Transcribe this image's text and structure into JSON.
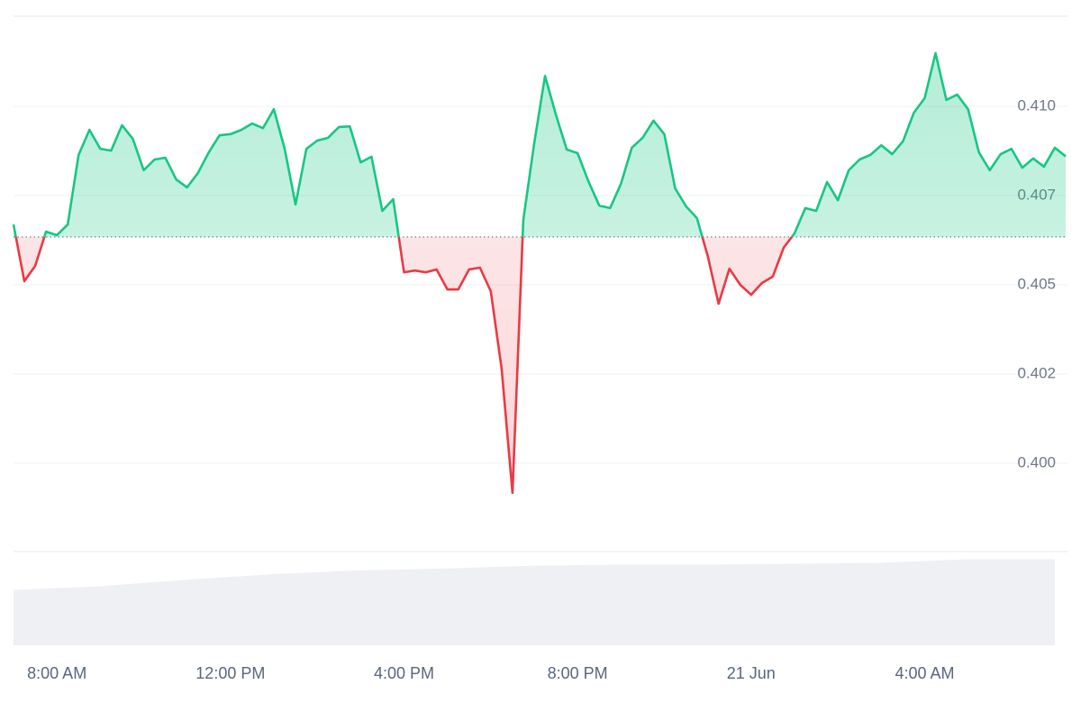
{
  "chart_data": {
    "type": "line",
    "x": [
      7,
      7.25,
      7.5,
      7.75,
      8,
      8.25,
      8.5,
      8.75,
      9,
      9.25,
      9.5,
      9.75,
      10,
      10.25,
      10.5,
      10.75,
      11,
      11.25,
      11.5,
      11.75,
      12,
      12.25,
      12.5,
      12.75,
      13,
      13.25,
      13.5,
      13.75,
      14,
      14.25,
      14.5,
      14.75,
      15,
      15.25,
      15.5,
      15.75,
      16,
      16.25,
      16.5,
      16.75,
      17,
      17.25,
      17.5,
      17.75,
      18,
      18.25,
      18.5,
      18.75,
      19,
      19.25,
      19.5,
      19.75,
      20,
      20.25,
      20.5,
      20.75,
      21,
      21.25,
      21.5,
      21.75,
      22,
      22.25,
      22.5,
      22.75,
      23,
      23.25,
      23.5,
      23.75,
      24,
      24.25,
      24.5,
      24.75,
      25,
      25.25,
      25.5,
      25.75,
      26,
      26.25,
      26.5,
      26.75,
      27,
      27.25,
      27.5,
      27.75,
      28,
      28.25,
      28.5,
      28.75,
      29,
      29.25,
      29.5,
      29.75,
      30,
      30.25,
      30.5,
      30.75,
      31,
      31.25
    ],
    "values": [
      0.40669,
      0.4051,
      0.40553,
      0.40649,
      0.40639,
      0.40669,
      0.40864,
      0.40934,
      0.40881,
      0.40876,
      0.40947,
      0.40909,
      0.40821,
      0.40851,
      0.40856,
      0.40795,
      0.40773,
      0.40813,
      0.40871,
      0.40919,
      0.40922,
      0.40934,
      0.40952,
      0.40939,
      0.40992,
      0.40881,
      0.40725,
      0.40881,
      0.40904,
      0.40912,
      0.40942,
      0.40944,
      0.40843,
      0.40859,
      0.40707,
      0.4074,
      0.40535,
      0.4054,
      0.40535,
      0.40543,
      0.40487,
      0.40487,
      0.40543,
      0.40548,
      0.40482,
      0.40265,
      0.39917,
      0.40682,
      0.40896,
      0.41085,
      0.40977,
      0.40879,
      0.40869,
      0.4079,
      0.40722,
      0.40715,
      0.40783,
      0.40884,
      0.40912,
      0.4096,
      0.40922,
      0.4077,
      0.4072,
      0.40687,
      0.40581,
      0.40447,
      0.40545,
      0.405,
      0.40472,
      0.40505,
      0.40523,
      0.40604,
      0.40644,
      0.40715,
      0.40707,
      0.40788,
      0.40737,
      0.40821,
      0.40851,
      0.40864,
      0.40891,
      0.40866,
      0.40902,
      0.40982,
      0.41023,
      0.41149,
      0.41018,
      0.41033,
      0.40992,
      0.40871,
      0.40821,
      0.40866,
      0.40881,
      0.40828,
      0.40854,
      0.40831,
      0.40884,
      0.4086
    ],
    "baseline": 0.40634,
    "colors": {
      "up": "#16c784",
      "down": "#ea3943",
      "volume": "#eef0f4"
    },
    "xlim": [
      7,
      31.25
    ],
    "xticks": [
      {
        "value": 8,
        "label": "8:00 AM"
      },
      {
        "value": 12,
        "label": "12:00 PM"
      },
      {
        "value": 16,
        "label": "4:00 PM"
      },
      {
        "value": 20,
        "label": "8:00 PM"
      },
      {
        "value": 24,
        "label": "21 Jun"
      },
      {
        "value": 28,
        "label": "4:00 AM"
      }
    ],
    "ylim": [
      0.3975,
      0.4125
    ],
    "yticks": [
      {
        "value": 0.41,
        "label": "0.410"
      },
      {
        "value": 0.4075,
        "label": "0.407"
      },
      {
        "value": 0.405,
        "label": "0.405"
      },
      {
        "value": 0.4025,
        "label": "0.402"
      },
      {
        "value": 0.4,
        "label": "0.400"
      }
    ],
    "grid": true,
    "volume": {
      "x": [
        7,
        9,
        11,
        13,
        15,
        17,
        19,
        21,
        23,
        25,
        27,
        29,
        31
      ],
      "values": [
        59,
        63,
        70,
        76,
        80,
        82,
        85,
        86,
        86,
        87,
        88,
        92,
        92
      ],
      "vlim": [
        0,
        100
      ]
    }
  }
}
